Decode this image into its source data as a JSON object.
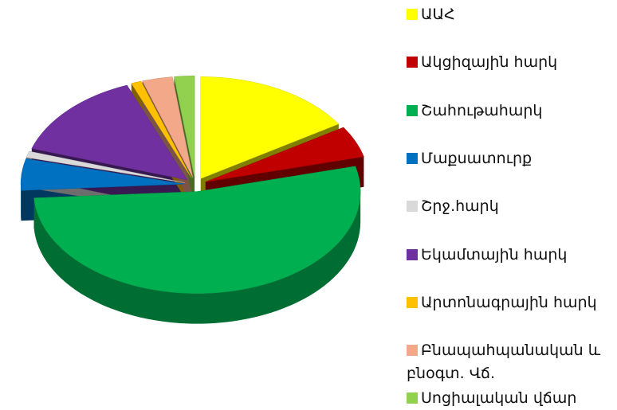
{
  "chart_data": {
    "type": "pie",
    "categories": [
      "ԱԱՀ",
      "Ակցիզային հարկ",
      "Շահութահարկ",
      "Մաքսատուրք",
      "Շրջ.հարկ",
      "Եկամտային հարկ",
      "Արտոնագրային հարկ",
      "Բնապահպանական և բնօգտ. Վճ.",
      "Սոցիալական վճար"
    ],
    "values": [
      16,
      5,
      53,
      5,
      1,
      14,
      1,
      3,
      2
    ],
    "colors": [
      "#ffff00",
      "#c00000",
      "#00b050",
      "#0070c0",
      "#d9d9d9",
      "#7030a0",
      "#ffc000",
      "#f4a88a",
      "#92d050"
    ],
    "legend": "right"
  }
}
